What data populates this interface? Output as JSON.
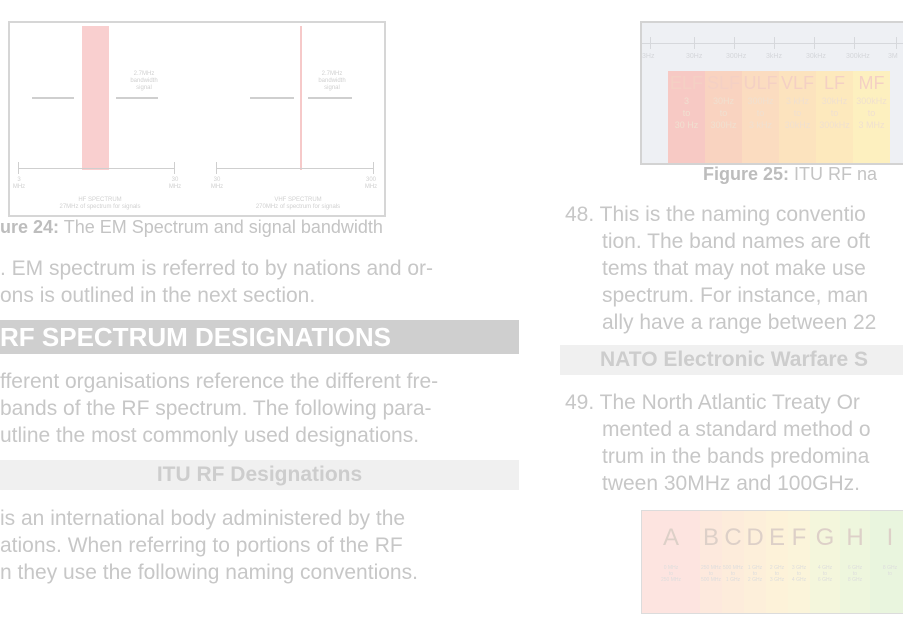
{
  "figure24": {
    "caption_bold": "ure 24:",
    "caption_text": "The EM Spectrum and signal bandwidth",
    "hf": {
      "bw_label": [
        "2.7MHz",
        "bandwidth",
        "signal"
      ],
      "left_tick": [
        "3",
        "MHz"
      ],
      "right_tick": [
        "30",
        "MHz"
      ],
      "spectrum_label": [
        "HF SPECTRUM",
        "27MHz of spectrum for signals"
      ]
    },
    "vhf": {
      "bw_label": [
        "2.7MHz",
        "bandwidth",
        "signal"
      ],
      "left_tick": [
        "30",
        "MHz"
      ],
      "right_tick": [
        "300",
        "MHz"
      ],
      "spectrum_label": [
        "VHF SPECTRUM",
        "270MHz of spectrum for signals"
      ]
    }
  },
  "left_column": {
    "intro_lines": [
      ". EM spectrum is referred to by nations and or-",
      "ons is outlined in the next section."
    ],
    "section_title": "RF SPECTRUM DESIGNATIONS",
    "section_lines": [
      "fferent organisations reference the different fre-",
      "bands of the RF spectrum. The following para-",
      "utline the most commonly used designations."
    ],
    "subsection_title": "ITU RF Designations",
    "itu_lines": [
      "is an international body administered by the",
      "ations. When referring to portions of the RF",
      "n they use the following naming conventions."
    ]
  },
  "figure25": {
    "caption_bold": "Figure 25:",
    "caption_text": "ITU RF na",
    "scale_labels": [
      "3Hz",
      "30Hz",
      "300Hz",
      "3kHz",
      "30kHz",
      "300kHz",
      "3M"
    ],
    "bands": [
      {
        "name": "ELF",
        "range": [
          "3",
          "to",
          "30 Hz"
        ],
        "color": "#f7c9c4"
      },
      {
        "name": "SLF",
        "range": [
          "30Hz",
          "to",
          "300Hz"
        ],
        "color": "#f9d3c0"
      },
      {
        "name": "ULF",
        "range": [
          "300Hz",
          "to",
          "3 kHz"
        ],
        "color": "#fbdcc0"
      },
      {
        "name": "VLF",
        "range": [
          "3 kHz",
          "to",
          "30kHz"
        ],
        "color": "#fce3be"
      },
      {
        "name": "LF",
        "range": [
          "30kHz",
          "to",
          "300kHz"
        ],
        "color": "#fde9bd"
      },
      {
        "name": "MF",
        "range": [
          "300kHz",
          "to",
          "3 MHz"
        ],
        "color": "#fdf0bf"
      }
    ]
  },
  "right_column": {
    "para48_lines": [
      "48. This is the naming conventio",
      "tion. The band names are oft",
      "tems that may not make use",
      "spectrum. For instance, man",
      "ally have a range between 22"
    ],
    "subsection_title": "NATO Electronic Warfare S",
    "para49_lines": [
      "49. The North Atlantic Treaty Or",
      "mented a standard method o",
      "trum in the bands predomina",
      "tween 30MHz and 100GHz."
    ]
  },
  "figure26": {
    "bands": [
      {
        "name": "A",
        "range": [
          "0 MHz",
          "to",
          "250 MHz"
        ],
        "color": "#fde4e0"
      },
      {
        "name": "B",
        "range": [
          "250 MHz",
          "to",
          "500 MHz"
        ],
        "color": "#fde9dd"
      },
      {
        "name": "C",
        "range": [
          "500 MHz",
          "to",
          "1 GHz"
        ],
        "color": "#fdecdb"
      },
      {
        "name": "D",
        "range": [
          "1 GHz",
          "to",
          "2 GHz"
        ],
        "color": "#fdefda"
      },
      {
        "name": "E",
        "range": [
          "2 GHz",
          "to",
          "3 GHz"
        ],
        "color": "#fdf2d9"
      },
      {
        "name": "F",
        "range": [
          "3 GHz",
          "to",
          "4 GHz"
        ],
        "color": "#fbf4da"
      },
      {
        "name": "G",
        "range": [
          "4 GHz",
          "to",
          "6 GHz"
        ],
        "color": "#f4f6dc"
      },
      {
        "name": "H",
        "range": [
          "6 GHz",
          "to",
          "8 GHz"
        ],
        "color": "#eef6dd"
      },
      {
        "name": "I",
        "range": [
          "8 GHz",
          "to",
          ""
        ],
        "color": "#e9f5de"
      }
    ]
  }
}
